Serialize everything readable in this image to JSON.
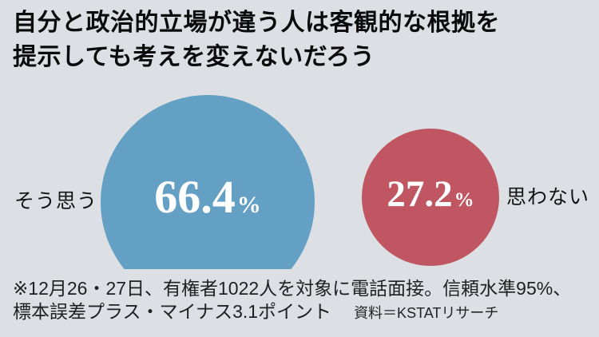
{
  "title": {
    "line1": "自分と政治的立場が違う人は客観的な根拠を",
    "line2": "提示しても考えを変えないだろう"
  },
  "chart_data": {
    "type": "pie",
    "variant": "proportional-area-bubbles",
    "title": "自分と政治的立場が違う人は客観的な根拠を提示しても考えを変えないだろう",
    "categories": [
      "そう思う",
      "思わない"
    ],
    "values": [
      66.4,
      27.2
    ],
    "unit": "%",
    "colors": [
      "#64a0c3",
      "#c15663"
    ],
    "value_text_color": "#ffffff",
    "background_color": "#dce0e4",
    "layout": {
      "legend": "labels beside bubbles (left of large bubble, right of small bubble)",
      "large_bubble_clipped_at_bottom": true
    }
  },
  "bubbles": {
    "agree": {
      "label": "そう思う",
      "value": "66.4",
      "unit": "%"
    },
    "disagree": {
      "label": "思わない",
      "value": "27.2",
      "unit": "%"
    }
  },
  "footnote": {
    "line1": "※12月26・27日、有権者1022人を対象に電話面接。信頼水準95%、",
    "line2": "標本誤差プラス・マイナス3.1ポイント",
    "source": "資料＝KSTATリサーチ"
  }
}
